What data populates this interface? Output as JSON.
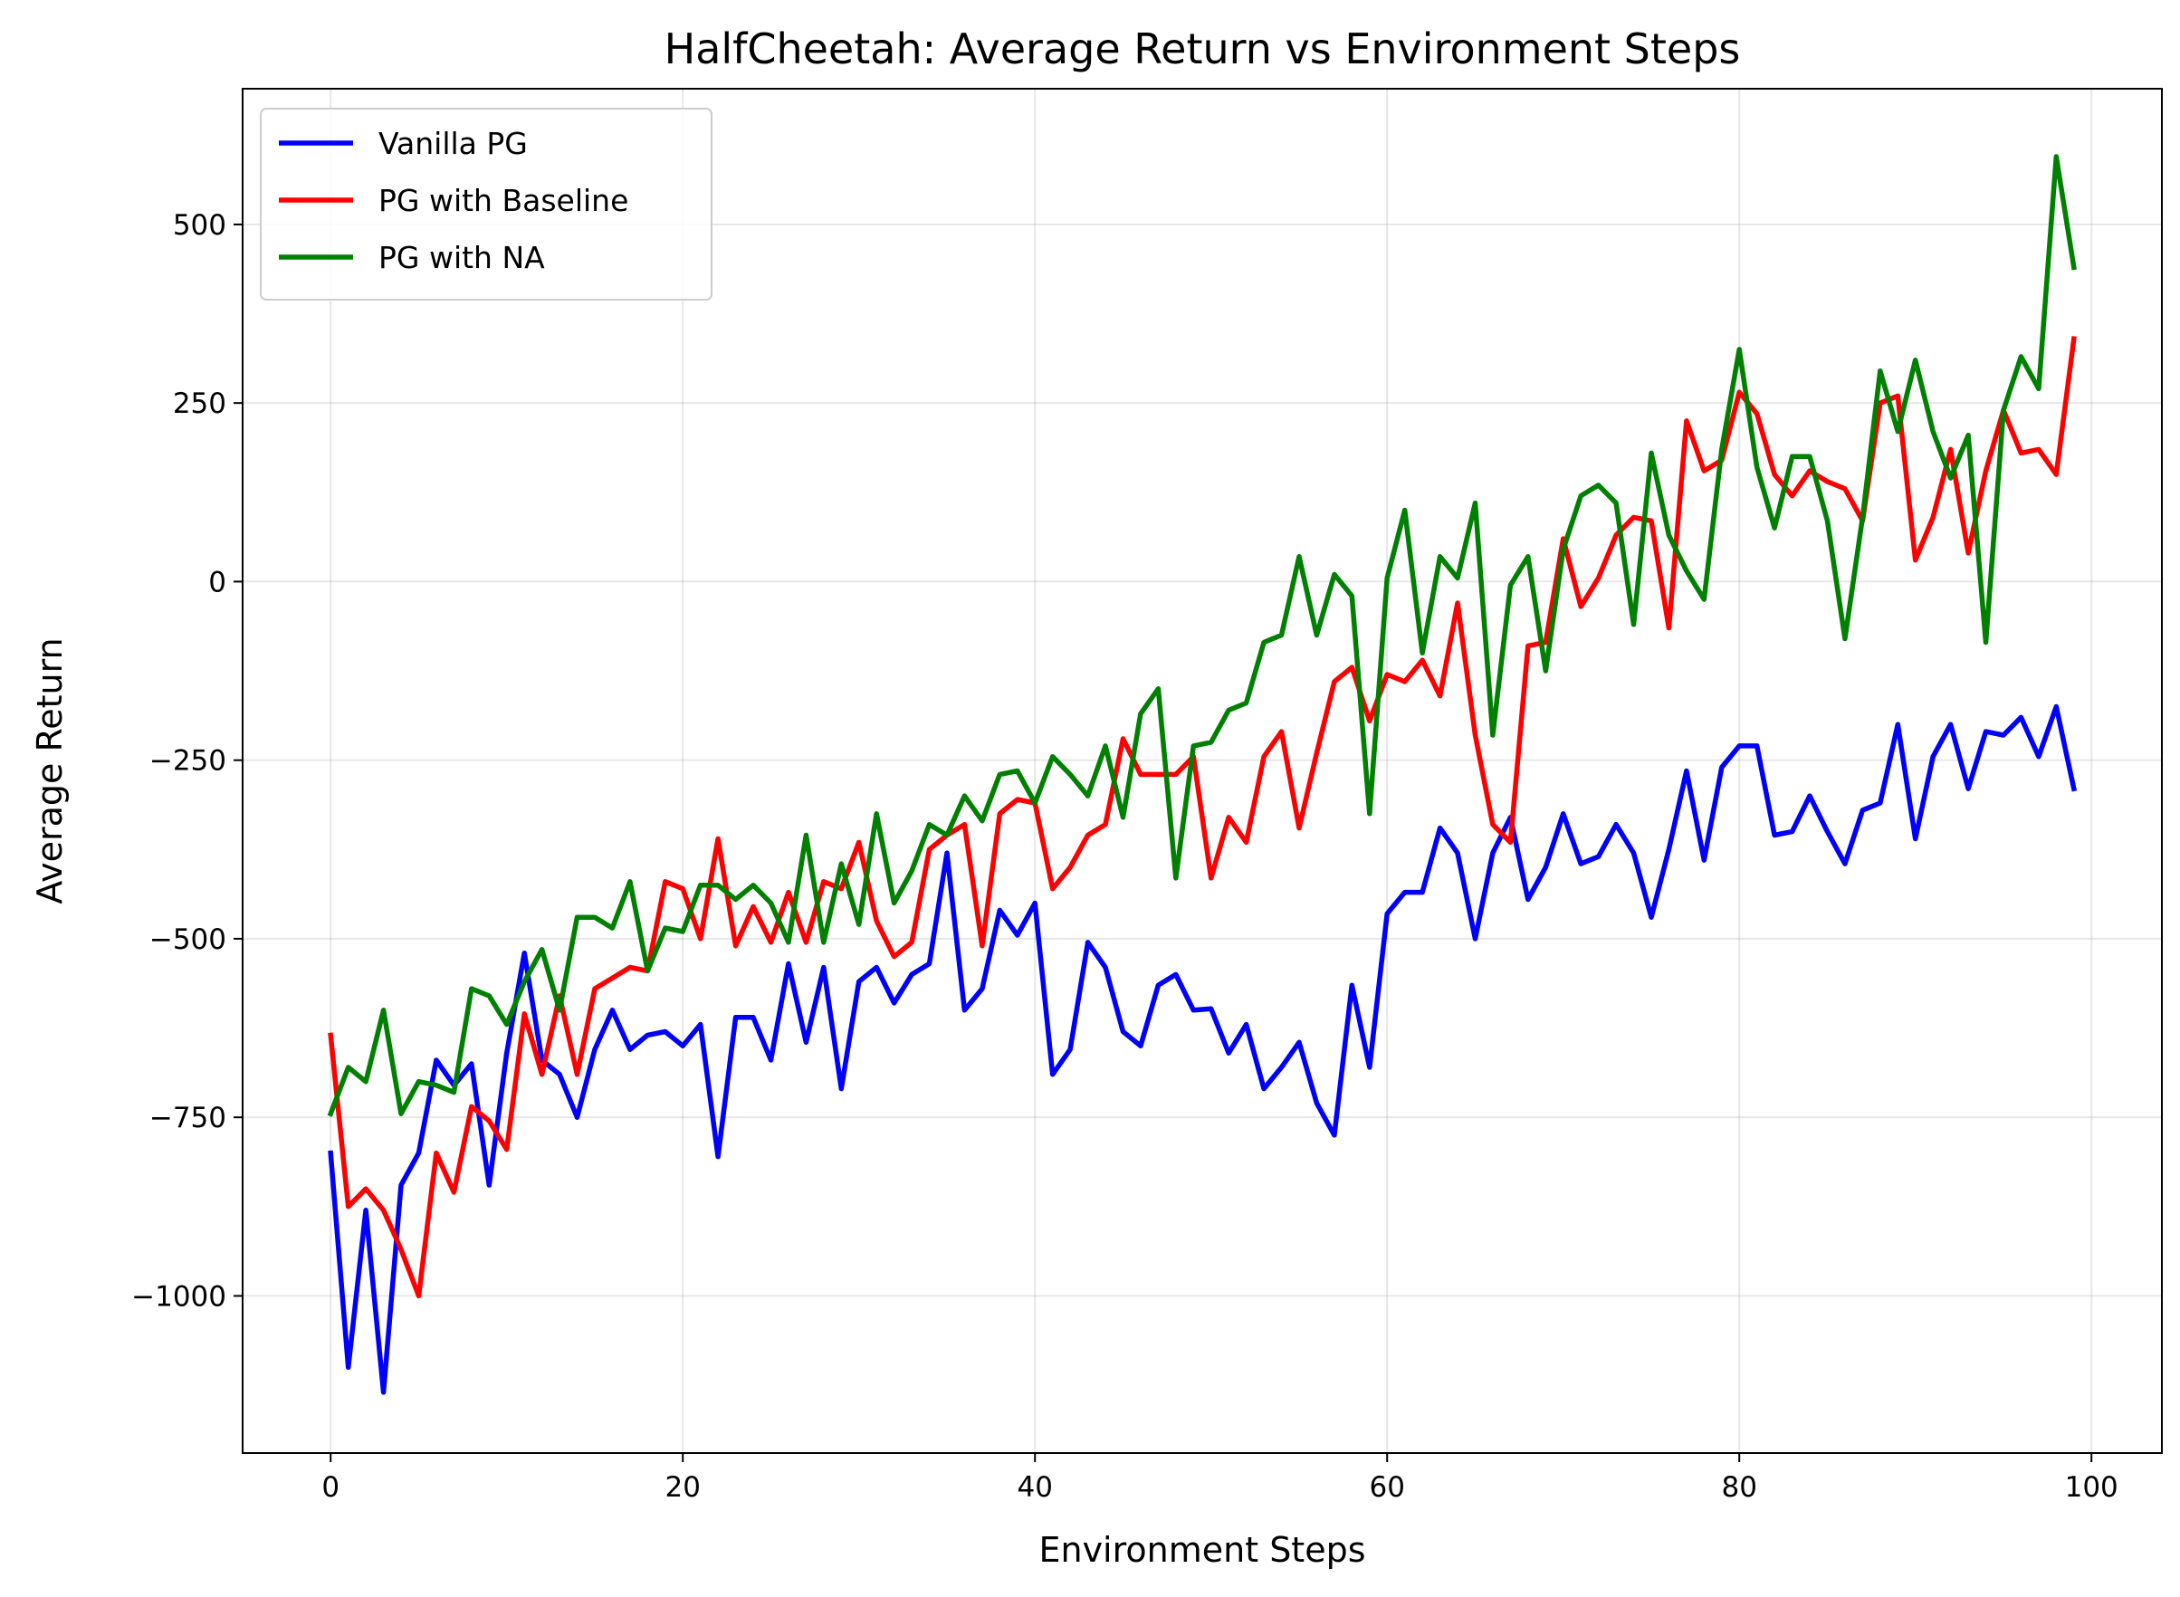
{
  "chart_data": {
    "type": "line",
    "title": "HalfCheetah: Average Return vs Environment Steps",
    "xlabel": "Environment Steps",
    "ylabel": "Average Return",
    "xlim": [
      -5,
      104
    ],
    "ylim": [
      -1220,
      690
    ],
    "xticks": [
      0,
      20,
      40,
      60,
      80,
      100
    ],
    "yticks": [
      -1000,
      -750,
      -500,
      -250,
      0,
      250,
      500
    ],
    "ytick_labels": [
      "−1000",
      "−750",
      "−500",
      "−250",
      "0",
      "250",
      "500"
    ],
    "grid": true,
    "legend_position": "top-left",
    "series": [
      {
        "name": "Vanilla PG",
        "color": "#0000ff",
        "values": [
          -800,
          -1100,
          -880,
          -1135,
          -845,
          -800,
          -670,
          -705,
          -675,
          -845,
          -660,
          -520,
          -670,
          -690,
          -750,
          -655,
          -600,
          -655,
          -635,
          -630,
          -650,
          -620,
          -805,
          -610,
          -610,
          -670,
          -535,
          -645,
          -540,
          -710,
          -560,
          -540,
          -590,
          -550,
          -535,
          -380,
          -600,
          -570,
          -460,
          -495,
          -450,
          -690,
          -655,
          -505,
          -540,
          -630,
          -650,
          -565,
          -550,
          -600,
          -598,
          -660,
          -620,
          -710,
          -680,
          -645,
          -730,
          -775,
          -565,
          -680,
          -465,
          -435,
          -435,
          -345,
          -380,
          -500,
          -380,
          -330,
          -445,
          -400,
          -325,
          -395,
          -385,
          -340,
          -380,
          -470,
          -375,
          -265,
          -390,
          -260,
          -230,
          -230,
          -355,
          -350,
          -300,
          -350,
          -395,
          -320,
          -310,
          -200,
          -360,
          -245,
          -200,
          -290,
          -210,
          -215,
          -190,
          -245,
          -175,
          -290
        ]
      },
      {
        "name": "PG with Baseline",
        "color": "#ff0000",
        "values": [
          -635,
          -875,
          -850,
          -880,
          -935,
          -1000,
          -800,
          -855,
          -735,
          -755,
          -795,
          -605,
          -690,
          -580,
          -690,
          -570,
          -555,
          -540,
          -545,
          -420,
          -430,
          -500,
          -360,
          -510,
          -455,
          -505,
          -435,
          -505,
          -420,
          -430,
          -365,
          -475,
          -525,
          -505,
          -375,
          -355,
          -340,
          -510,
          -325,
          -305,
          -310,
          -430,
          -400,
          -355,
          -340,
          -220,
          -270,
          -270,
          -270,
          -245,
          -415,
          -330,
          -365,
          -245,
          -210,
          -345,
          -240,
          -140,
          -120,
          -195,
          -130,
          -140,
          -110,
          -160,
          -30,
          -215,
          -340,
          -365,
          -90,
          -85,
          60,
          -35,
          5,
          65,
          90,
          85,
          -65,
          225,
          155,
          170,
          265,
          235,
          150,
          120,
          155,
          140,
          130,
          85,
          250,
          260,
          30,
          90,
          185,
          40,
          155,
          240,
          180,
          185,
          150,
          340
        ]
      },
      {
        "name": "PG with NA",
        "color": "#008000",
        "values": [
          -745,
          -680,
          -700,
          -600,
          -745,
          -700,
          -705,
          -715,
          -570,
          -580,
          -620,
          -560,
          -515,
          -600,
          -470,
          -470,
          -485,
          -420,
          -545,
          -485,
          -490,
          -425,
          -425,
          -445,
          -425,
          -450,
          -505,
          -355,
          -505,
          -395,
          -480,
          -325,
          -450,
          -405,
          -340,
          -355,
          -300,
          -335,
          -270,
          -265,
          -310,
          -245,
          -270,
          -300,
          -230,
          -330,
          -185,
          -150,
          -415,
          -230,
          -225,
          -180,
          -170,
          -85,
          -75,
          35,
          -75,
          10,
          -20,
          -325,
          5,
          100,
          -100,
          35,
          5,
          110,
          -215,
          -5,
          35,
          -125,
          45,
          120,
          135,
          110,
          -60,
          180,
          65,
          15,
          -25,
          185,
          325,
          160,
          75,
          175,
          175,
          85,
          -80,
          90,
          295,
          210,
          310,
          210,
          145,
          205,
          -85,
          240,
          315,
          270,
          595,
          440
        ]
      }
    ]
  }
}
